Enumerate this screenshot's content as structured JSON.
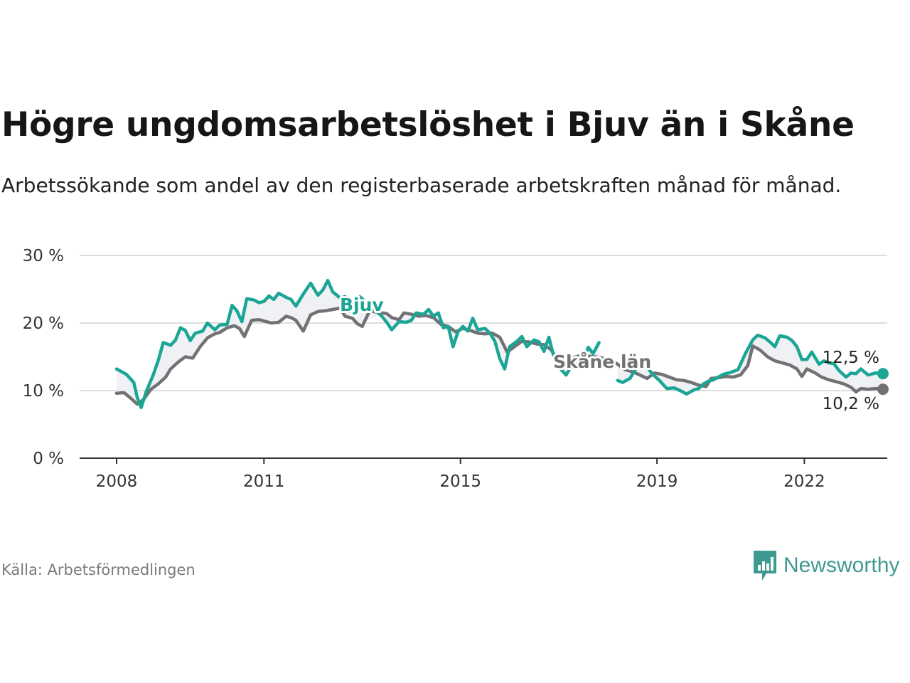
{
  "header": {
    "title": "Högre ungdomsarbetslöshet i Bjuv än i Skåne",
    "subtitle": "Arbetssökande som andel av den registerbaserade arbetskraften månad för månad."
  },
  "footer": {
    "source": "Källa: Arbetsförmedlingen",
    "brand": "Newsworthy"
  },
  "colors": {
    "bjuv": "#1aa595",
    "skane": "#727275",
    "grid": "#dddddd",
    "axis": "#333333"
  },
  "chart_data": {
    "type": "line",
    "title": "Högre ungdomsarbetslöshet i Bjuv än i Skåne",
    "xlabel": "",
    "ylabel": "",
    "x_range": [
      2007.4,
      2023.7
    ],
    "ylim": [
      0,
      30
    ],
    "y_ticks": [
      0,
      10,
      20,
      30
    ],
    "y_tick_labels": [
      "0 %",
      "10 %",
      "20 %",
      "30 %"
    ],
    "x_ticks": [
      2008,
      2011,
      2015,
      2019,
      2022
    ],
    "x_tick_labels": [
      "2008",
      "2011",
      "2015",
      "2019",
      "2022"
    ],
    "grid": true,
    "series": [
      {
        "name": "Bjuv",
        "label": "Bjuv",
        "end_label": "12,5 %",
        "points": [
          [
            2008.0,
            13.2
          ],
          [
            2008.2,
            12.4
          ],
          [
            2008.35,
            11.2
          ],
          [
            2008.42,
            9.0
          ],
          [
            2008.5,
            7.5
          ],
          [
            2008.6,
            9.8
          ],
          [
            2008.75,
            12.4
          ],
          [
            2008.85,
            14.5
          ],
          [
            2008.95,
            17.1
          ],
          [
            2009.1,
            16.7
          ],
          [
            2009.2,
            17.5
          ],
          [
            2009.3,
            19.3
          ],
          [
            2009.4,
            18.9
          ],
          [
            2009.5,
            17.4
          ],
          [
            2009.6,
            18.5
          ],
          [
            2009.75,
            18.8
          ],
          [
            2009.85,
            20.0
          ],
          [
            2010.0,
            19.0
          ],
          [
            2010.1,
            19.7
          ],
          [
            2010.25,
            19.8
          ],
          [
            2010.35,
            22.6
          ],
          [
            2010.45,
            21.8
          ],
          [
            2010.55,
            20.2
          ],
          [
            2010.65,
            23.6
          ],
          [
            2010.8,
            23.4
          ],
          [
            2010.9,
            23.0
          ],
          [
            2011.0,
            23.2
          ],
          [
            2011.1,
            24.0
          ],
          [
            2011.2,
            23.5
          ],
          [
            2011.3,
            24.4
          ],
          [
            2011.45,
            23.8
          ],
          [
            2011.55,
            23.5
          ],
          [
            2011.65,
            22.5
          ],
          [
            2011.8,
            24.3
          ],
          [
            2011.95,
            25.9
          ],
          [
            2012.1,
            24.1
          ],
          [
            2012.2,
            24.9
          ],
          [
            2012.3,
            26.3
          ],
          [
            2012.4,
            24.6
          ],
          [
            2012.55,
            23.7
          ],
          [
            2012.65,
            23.9
          ],
          [
            2012.75,
            21.7
          ],
          [
            2012.85,
            23.6
          ],
          [
            2012.95,
            23.9
          ],
          [
            2013.4,
            21.0
          ],
          [
            2013.5,
            20.1
          ],
          [
            2013.6,
            19.0
          ],
          [
            2013.75,
            20.2
          ],
          [
            2013.9,
            20.1
          ],
          [
            2014.0,
            20.4
          ],
          [
            2014.1,
            21.5
          ],
          [
            2014.25,
            21.3
          ],
          [
            2014.35,
            22.0
          ],
          [
            2014.45,
            21.0
          ],
          [
            2014.55,
            21.5
          ],
          [
            2014.65,
            19.3
          ],
          [
            2014.75,
            19.5
          ],
          [
            2014.85,
            16.5
          ],
          [
            2014.95,
            18.7
          ],
          [
            2015.05,
            19.5
          ],
          [
            2015.15,
            18.8
          ],
          [
            2015.25,
            20.7
          ],
          [
            2015.35,
            19.0
          ],
          [
            2015.5,
            19.2
          ],
          [
            2015.6,
            18.5
          ],
          [
            2015.7,
            17.3
          ],
          [
            2015.8,
            14.7
          ],
          [
            2015.9,
            13.2
          ],
          [
            2016.0,
            16.5
          ],
          [
            2016.15,
            17.3
          ],
          [
            2016.25,
            18.0
          ],
          [
            2016.35,
            16.5
          ],
          [
            2016.5,
            17.5
          ],
          [
            2016.6,
            17.2
          ],
          [
            2016.7,
            15.8
          ],
          [
            2016.8,
            17.9
          ],
          [
            2016.9,
            15.0
          ],
          [
            2017.05,
            13.1
          ],
          [
            2017.15,
            12.3
          ],
          [
            2017.25,
            13.6
          ],
          [
            2017.35,
            13.8
          ],
          [
            2017.5,
            14.6
          ],
          [
            2017.6,
            16.4
          ],
          [
            2017.7,
            15.5
          ],
          [
            2017.82,
            17.1
          ],
          null,
          [
            2018.2,
            11.5
          ],
          [
            2018.3,
            11.2
          ],
          [
            2018.45,
            11.8
          ],
          [
            2018.6,
            13.6
          ],
          [
            2018.75,
            14.0
          ],
          [
            2018.9,
            12.5
          ],
          [
            2019.05,
            11.5
          ],
          [
            2019.2,
            10.3
          ],
          [
            2019.35,
            10.4
          ],
          [
            2019.5,
            9.9
          ],
          [
            2019.6,
            9.5
          ],
          [
            2019.75,
            10.1
          ],
          [
            2019.85,
            10.3
          ],
          [
            2019.95,
            11.0
          ],
          [
            2020.05,
            11.4
          ],
          [
            2020.15,
            11.6
          ],
          [
            2020.25,
            12.0
          ],
          [
            2020.35,
            12.4
          ],
          [
            2020.5,
            12.7
          ],
          [
            2020.65,
            13.1
          ],
          [
            2020.8,
            15.5
          ],
          [
            2020.95,
            17.5
          ],
          [
            2021.05,
            18.2
          ],
          [
            2021.2,
            17.8
          ],
          [
            2021.3,
            17.2
          ],
          [
            2021.4,
            16.5
          ],
          [
            2021.5,
            18.1
          ],
          [
            2021.65,
            17.9
          ],
          [
            2021.75,
            17.4
          ],
          [
            2021.85,
            16.5
          ],
          [
            2021.95,
            14.6
          ],
          [
            2022.05,
            14.6
          ],
          [
            2022.15,
            15.7
          ],
          [
            2022.3,
            13.9
          ],
          [
            2022.4,
            14.4
          ],
          [
            2022.5,
            14.1
          ],
          [
            2022.6,
            14.0
          ],
          [
            2022.7,
            13.0
          ],
          [
            2022.85,
            12.0
          ],
          [
            2022.95,
            12.6
          ],
          [
            2023.05,
            12.5
          ],
          [
            2023.15,
            13.2
          ],
          [
            2023.3,
            12.3
          ],
          [
            2023.45,
            12.6
          ],
          [
            2023.6,
            12.5
          ]
        ]
      },
      {
        "name": "Skåne län",
        "label": "Skåne län",
        "end_label": "10,2 %",
        "points": [
          [
            2008.0,
            9.6
          ],
          [
            2008.15,
            9.7
          ],
          [
            2008.3,
            8.8
          ],
          [
            2008.42,
            8.0
          ],
          [
            2008.55,
            8.7
          ],
          [
            2008.7,
            10.2
          ],
          [
            2008.85,
            11.0
          ],
          [
            2009.0,
            12.0
          ],
          [
            2009.1,
            13.2
          ],
          [
            2009.25,
            14.2
          ],
          [
            2009.4,
            15.0
          ],
          [
            2009.55,
            14.8
          ],
          [
            2009.7,
            16.5
          ],
          [
            2009.85,
            17.8
          ],
          [
            2010.0,
            18.4
          ],
          [
            2010.1,
            18.6
          ],
          [
            2010.25,
            19.3
          ],
          [
            2010.4,
            19.6
          ],
          [
            2010.5,
            19.2
          ],
          [
            2010.6,
            18.0
          ],
          [
            2010.75,
            20.4
          ],
          [
            2010.9,
            20.5
          ],
          [
            2011.0,
            20.3
          ],
          [
            2011.15,
            20.0
          ],
          [
            2011.3,
            20.1
          ],
          [
            2011.45,
            21.0
          ],
          [
            2011.55,
            20.8
          ],
          [
            2011.65,
            20.4
          ],
          [
            2011.8,
            18.8
          ],
          [
            2011.95,
            21.2
          ],
          [
            2012.1,
            21.7
          ],
          [
            2012.25,
            21.8
          ],
          [
            2012.4,
            22.0
          ],
          [
            2012.55,
            22.2
          ],
          [
            2012.65,
            21.0
          ],
          [
            2012.8,
            20.7
          ],
          [
            2012.9,
            19.9
          ],
          [
            2013.0,
            19.5
          ],
          [
            2013.15,
            21.8
          ],
          [
            2013.3,
            21.6
          ],
          [
            2013.5,
            21.4
          ],
          [
            2013.6,
            20.8
          ],
          [
            2013.75,
            20.5
          ],
          [
            2013.85,
            21.5
          ],
          [
            2014.0,
            21.3
          ],
          [
            2014.15,
            21.0
          ],
          [
            2014.3,
            21.1
          ],
          [
            2014.45,
            20.8
          ],
          [
            2014.6,
            19.8
          ],
          [
            2014.75,
            19.5
          ],
          [
            2014.9,
            18.7
          ],
          [
            2015.05,
            19.2
          ],
          [
            2015.2,
            18.9
          ],
          [
            2015.35,
            18.5
          ],
          [
            2015.5,
            18.4
          ],
          [
            2015.65,
            18.5
          ],
          [
            2015.8,
            17.9
          ],
          [
            2015.95,
            15.7
          ],
          [
            2016.1,
            16.5
          ],
          [
            2016.25,
            17.3
          ],
          [
            2016.4,
            17.2
          ],
          [
            2016.55,
            16.9
          ],
          [
            2016.7,
            16.8
          ],
          [
            2016.85,
            16.0
          ],
          [
            2017.0,
            14.3
          ],
          [
            2017.15,
            15.0
          ],
          [
            2017.3,
            14.9
          ],
          [
            2017.45,
            15.2
          ],
          [
            2017.6,
            15.1
          ],
          [
            2017.75,
            15.0
          ],
          [
            2017.9,
            14.8
          ],
          [
            2018.05,
            14.5
          ],
          [
            2018.2,
            13.9
          ],
          [
            2018.35,
            13.1
          ],
          [
            2018.5,
            12.8
          ],
          [
            2018.65,
            12.3
          ],
          [
            2018.8,
            11.8
          ],
          [
            2018.95,
            12.6
          ],
          [
            2019.1,
            12.4
          ],
          [
            2019.25,
            12.0
          ],
          [
            2019.4,
            11.6
          ],
          [
            2019.55,
            11.5
          ],
          [
            2019.7,
            11.2
          ],
          [
            2019.85,
            10.8
          ],
          [
            2020.0,
            10.6
          ],
          [
            2020.1,
            11.8
          ],
          [
            2020.25,
            11.9
          ],
          [
            2020.4,
            12.1
          ],
          [
            2020.55,
            12.0
          ],
          [
            2020.7,
            12.3
          ],
          [
            2020.85,
            13.7
          ],
          [
            2020.95,
            16.6
          ],
          [
            2021.1,
            16.0
          ],
          [
            2021.25,
            15.0
          ],
          [
            2021.4,
            14.4
          ],
          [
            2021.55,
            14.1
          ],
          [
            2021.7,
            13.8
          ],
          [
            2021.85,
            13.2
          ],
          [
            2021.95,
            12.1
          ],
          [
            2022.05,
            13.2
          ],
          [
            2022.2,
            12.7
          ],
          [
            2022.35,
            12.0
          ],
          [
            2022.5,
            11.6
          ],
          [
            2022.65,
            11.3
          ],
          [
            2022.8,
            11.0
          ],
          [
            2022.95,
            10.5
          ],
          [
            2023.05,
            9.8
          ],
          [
            2023.15,
            10.3
          ],
          [
            2023.3,
            10.2
          ],
          [
            2023.45,
            10.3
          ],
          [
            2023.6,
            10.2
          ]
        ]
      }
    ]
  }
}
